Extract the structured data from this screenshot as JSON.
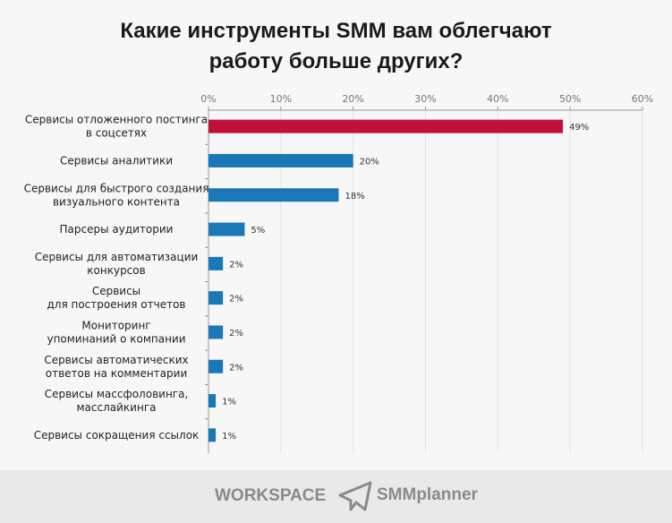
{
  "chart_data": {
    "type": "bar",
    "orientation": "horizontal",
    "title": "Какие инструменты SMM вам облегчают\nработу больше других?",
    "categories": [
      "Сервисы отложенного постинга\nв соцсетях",
      "Сервисы аналитики",
      "Сервисы для быстрого создания\nвизуального контента",
      "Парсеры аудитории",
      "Сервисы для автоматизации\nконкурсов",
      "Сервисы\nдля построения отчетов",
      "Мониторинг\nупоминаний о компании",
      "Сервисы автоматических\nответов на комментарии",
      "Сервисы массфоловинга,\nмасслайкинга",
      "Сервисы сокращения ссылок"
    ],
    "values": [
      49,
      20,
      18,
      5,
      2,
      2,
      2,
      2,
      1,
      1
    ],
    "data_labels": [
      "49%",
      "20%",
      "18%",
      "5%",
      "2%",
      "2%",
      "2%",
      "2%",
      "1%",
      "1%"
    ],
    "xlim": [
      0,
      60
    ],
    "x_ticks": [
      "0%",
      "10%",
      "20%",
      "30%",
      "40%",
      "50%",
      "60%"
    ],
    "x_axis_position": "top",
    "grid": true,
    "colors": {
      "highlight": "#c0103a",
      "default": "#1a78b8"
    }
  },
  "footer": {
    "logo_workspace": "WORKSPACE",
    "logo_smmplanner": "SMMplanner"
  }
}
